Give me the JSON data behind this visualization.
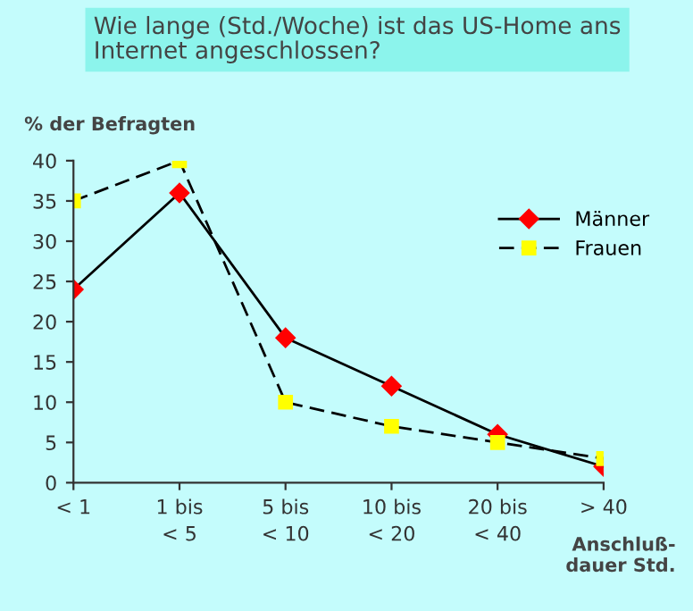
{
  "chart_data": {
    "type": "line",
    "title": "Wie lange (Std./Woche) ist das US-Home ans\nInternet angeschlossen?",
    "ylabel": "% der Befragten",
    "xlabel": "Anschluß-\ndauer Std.",
    "categories": [
      "< 1",
      "1 bis\n< 5",
      "5 bis\n< 10",
      "10 bis\n< 20",
      "20 bis\n< 40",
      "> 40"
    ],
    "series": [
      {
        "name": "Männer",
        "color": "#ff0000",
        "values": [
          24,
          36,
          18,
          12,
          6,
          2
        ],
        "marker": "diamond",
        "line_style": "solid"
      },
      {
        "name": "Frauen",
        "color": "#ffff00",
        "values": [
          35,
          40,
          10,
          7,
          5,
          3
        ],
        "marker": "square",
        "line_style": "dashed"
      }
    ],
    "ylim": [
      0,
      40
    ],
    "yticks": [
      0,
      5,
      10,
      15,
      20,
      25,
      30,
      35,
      40
    ],
    "grid": false,
    "legend": "top right"
  }
}
